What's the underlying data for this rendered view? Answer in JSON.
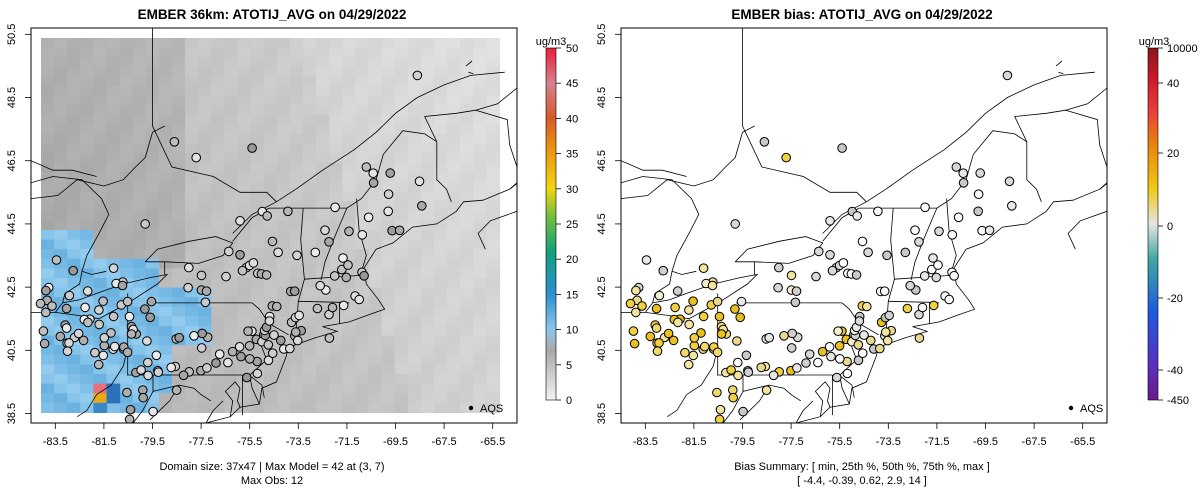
{
  "chart_data": [
    {
      "type": "heatmap",
      "title": "EMBER 36km: ATOTIJ_AVG on 04/29/2022",
      "x_ticks": [
        "-83.5",
        "-81.5",
        "-79.5",
        "-77.5",
        "-75.5",
        "-73.5",
        "-71.5",
        "-69.5",
        "-67.5",
        "-65.5"
      ],
      "y_ticks": [
        "38.5",
        "40.5",
        "42.5",
        "44.5",
        "46.5",
        "48.5",
        "50.5"
      ],
      "xlim": [
        -84.5,
        -64.5
      ],
      "ylim": [
        38.2,
        50.7
      ],
      "colorbar": {
        "unit": "ug/m3",
        "ticks": [
          "0",
          "5",
          "10",
          "15",
          "20",
          "25",
          "30",
          "35",
          "40",
          "45",
          "50"
        ],
        "range": [
          0,
          50
        ]
      },
      "legend": "AQS",
      "footer": [
        "Domain size: 37x47 | Max Model = 42 at (3, 7)",
        "Max Obs: 12"
      ]
    },
    {
      "type": "scatter",
      "title": "EMBER bias: ATOTIJ_AVG on 04/29/2022",
      "x_ticks": [
        "-83.5",
        "-81.5",
        "-79.5",
        "-77.5",
        "-75.5",
        "-73.5",
        "-71.5",
        "-69.5",
        "-67.5",
        "-65.5"
      ],
      "y_ticks": [
        "38.5",
        "40.5",
        "42.5",
        "44.5",
        "46.5",
        "48.5",
        "50.5"
      ],
      "xlim": [
        -84.5,
        -64.5
      ],
      "ylim": [
        38.2,
        50.7
      ],
      "colorbar": {
        "unit": "ug/m3",
        "ticks": [
          "10000",
          "40",
          "20",
          "0",
          "-20",
          "-40",
          "-450"
        ]
      },
      "legend": "AQS",
      "footer": [
        "Bias Summary: [ min, 25th %, 50th %, 75th %, max ]",
        "[ -4.4,   -0.39,   0.62,   2.9,   14 ]"
      ]
    }
  ]
}
